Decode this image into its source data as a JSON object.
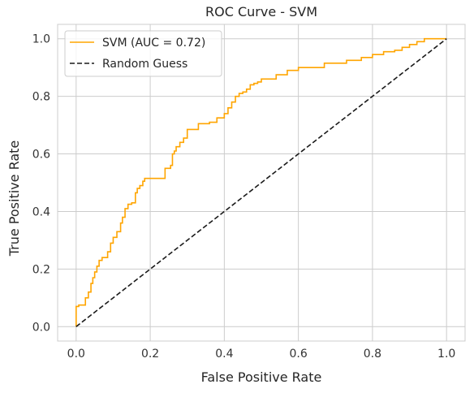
{
  "chart_data": {
    "type": "line",
    "title": "ROC Curve - SVM",
    "xlabel": "False Positive Rate",
    "ylabel": "True Positive Rate",
    "xlim": [
      -0.05,
      1.05
    ],
    "ylim": [
      -0.05,
      1.05
    ],
    "xticks": [
      0.0,
      0.2,
      0.4,
      0.6,
      0.8,
      1.0
    ],
    "yticks": [
      0.0,
      0.2,
      0.4,
      0.6,
      0.8,
      1.0
    ],
    "xtick_labels": [
      "0.0",
      "0.2",
      "0.4",
      "0.6",
      "0.8",
      "1.0"
    ],
    "ytick_labels": [
      "0.0",
      "0.2",
      "0.4",
      "0.6",
      "0.8",
      "1.0"
    ],
    "grid": true,
    "legend_position": "top-left",
    "series": [
      {
        "name": "SVM (AUC = 0.72)",
        "color": "#ffa500",
        "style": "solid",
        "step": true,
        "x": [
          0.0,
          0.0,
          0.007,
          0.007,
          0.025,
          0.025,
          0.033,
          0.033,
          0.04,
          0.04,
          0.045,
          0.045,
          0.05,
          0.05,
          0.056,
          0.056,
          0.062,
          0.062,
          0.07,
          0.07,
          0.085,
          0.085,
          0.093,
          0.093,
          0.1,
          0.1,
          0.11,
          0.11,
          0.12,
          0.12,
          0.125,
          0.125,
          0.132,
          0.132,
          0.14,
          0.14,
          0.15,
          0.15,
          0.16,
          0.16,
          0.165,
          0.165,
          0.172,
          0.172,
          0.18,
          0.18,
          0.185,
          0.185,
          0.19,
          0.19,
          0.24,
          0.24,
          0.255,
          0.255,
          0.26,
          0.26,
          0.265,
          0.265,
          0.27,
          0.27,
          0.28,
          0.28,
          0.29,
          0.29,
          0.3,
          0.3,
          0.32,
          0.32,
          0.33,
          0.33,
          0.36,
          0.36,
          0.38,
          0.38,
          0.4,
          0.4,
          0.41,
          0.41,
          0.42,
          0.42,
          0.43,
          0.43,
          0.44,
          0.44,
          0.45,
          0.45,
          0.46,
          0.46,
          0.47,
          0.47,
          0.48,
          0.48,
          0.49,
          0.49,
          0.5,
          0.5,
          0.51,
          0.51,
          0.54,
          0.54,
          0.57,
          0.57,
          0.6,
          0.6,
          0.67,
          0.67,
          0.68,
          0.68,
          0.73,
          0.73,
          0.77,
          0.77,
          0.8,
          0.8,
          0.83,
          0.83,
          0.86,
          0.86,
          0.88,
          0.88,
          0.9,
          0.9,
          0.92,
          0.92,
          0.94,
          0.94,
          1.0
        ],
        "y": [
          0.0,
          0.07,
          0.07,
          0.075,
          0.075,
          0.1,
          0.1,
          0.12,
          0.12,
          0.15,
          0.15,
          0.17,
          0.17,
          0.19,
          0.19,
          0.21,
          0.21,
          0.23,
          0.23,
          0.24,
          0.24,
          0.26,
          0.26,
          0.29,
          0.29,
          0.31,
          0.31,
          0.33,
          0.33,
          0.36,
          0.36,
          0.38,
          0.38,
          0.41,
          0.41,
          0.425,
          0.425,
          0.43,
          0.43,
          0.465,
          0.465,
          0.48,
          0.48,
          0.49,
          0.49,
          0.505,
          0.505,
          0.515,
          0.515,
          0.515,
          0.515,
          0.55,
          0.55,
          0.56,
          0.56,
          0.6,
          0.6,
          0.61,
          0.61,
          0.625,
          0.625,
          0.64,
          0.64,
          0.655,
          0.655,
          0.685,
          0.685,
          0.685,
          0.685,
          0.705,
          0.705,
          0.71,
          0.71,
          0.725,
          0.725,
          0.74,
          0.74,
          0.76,
          0.76,
          0.78,
          0.78,
          0.8,
          0.8,
          0.81,
          0.81,
          0.815,
          0.815,
          0.825,
          0.825,
          0.84,
          0.84,
          0.845,
          0.845,
          0.85,
          0.85,
          0.86,
          0.86,
          0.86,
          0.86,
          0.875,
          0.875,
          0.89,
          0.89,
          0.9,
          0.9,
          0.915,
          0.915,
          0.915,
          0.915,
          0.925,
          0.925,
          0.935,
          0.935,
          0.945,
          0.945,
          0.955,
          0.955,
          0.96,
          0.96,
          0.97,
          0.97,
          0.98,
          0.98,
          0.99,
          0.99,
          1.0,
          1.0
        ]
      },
      {
        "name": "Random Guess",
        "color": "#1a1a1a",
        "style": "dashed",
        "step": false,
        "x": [
          0.0,
          1.0
        ],
        "y": [
          0.0,
          1.0
        ]
      }
    ]
  }
}
